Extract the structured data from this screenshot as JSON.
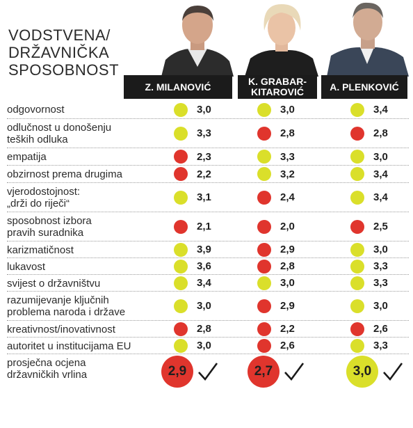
{
  "title": [
    "VODSTVENA/",
    "DRŽAVNIČKA",
    "SPOSOBNOST"
  ],
  "colors": {
    "red": "#e0352d",
    "yellow": "#dadf2a",
    "header_bg": "#1b1b1b"
  },
  "candidates": [
    {
      "name_lines": [
        "Z. MILANOVIĆ"
      ],
      "portrait": "portrait-milanovic"
    },
    {
      "name_lines": [
        "K. GRABAR-",
        "KITAROVIĆ"
      ],
      "portrait": "portrait-grabar-kitarovic"
    },
    {
      "name_lines": [
        "A. PLENKOVIĆ"
      ],
      "portrait": "portrait-plenkovic"
    }
  ],
  "rows": [
    {
      "label": [
        "odgovornost"
      ],
      "scores": [
        {
          "v": "3,0",
          "c": "yellow"
        },
        {
          "v": "3,0",
          "c": "yellow"
        },
        {
          "v": "3,4",
          "c": "yellow"
        }
      ]
    },
    {
      "label": [
        "odlučnost u donošenju",
        "teških odluka"
      ],
      "scores": [
        {
          "v": "3,3",
          "c": "yellow"
        },
        {
          "v": "2,8",
          "c": "red"
        },
        {
          "v": "2,8",
          "c": "red"
        }
      ]
    },
    {
      "label": [
        "empatija"
      ],
      "scores": [
        {
          "v": "2,3",
          "c": "red"
        },
        {
          "v": "3,3",
          "c": "yellow"
        },
        {
          "v": "3,0",
          "c": "yellow"
        }
      ]
    },
    {
      "label": [
        "obzirnost prema drugima"
      ],
      "scores": [
        {
          "v": "2,2",
          "c": "red"
        },
        {
          "v": "3,2",
          "c": "yellow"
        },
        {
          "v": "3,4",
          "c": "yellow"
        }
      ]
    },
    {
      "label": [
        "vjerodostojnost:",
        "„drži do riječi“"
      ],
      "scores": [
        {
          "v": "3,1",
          "c": "yellow"
        },
        {
          "v": "2,4",
          "c": "red"
        },
        {
          "v": "3,4",
          "c": "yellow"
        }
      ]
    },
    {
      "label": [
        "sposobnost izbora",
        "pravih suradnika"
      ],
      "scores": [
        {
          "v": "2,1",
          "c": "red"
        },
        {
          "v": "2,0",
          "c": "red"
        },
        {
          "v": "2,5",
          "c": "red"
        }
      ]
    },
    {
      "label": [
        "karizmatičnost"
      ],
      "scores": [
        {
          "v": "3,9",
          "c": "yellow"
        },
        {
          "v": "2,9",
          "c": "red"
        },
        {
          "v": "3,0",
          "c": "yellow"
        }
      ]
    },
    {
      "label": [
        "lukavost"
      ],
      "scores": [
        {
          "v": "3,6",
          "c": "yellow"
        },
        {
          "v": "2,8",
          "c": "red"
        },
        {
          "v": "3,3",
          "c": "yellow"
        }
      ]
    },
    {
      "label": [
        "svijest o državništvu"
      ],
      "scores": [
        {
          "v": "3,4",
          "c": "yellow"
        },
        {
          "v": "3,0",
          "c": "yellow"
        },
        {
          "v": "3,3",
          "c": "yellow"
        }
      ]
    },
    {
      "label": [
        "razumijevanje ključnih",
        "problema naroda i države"
      ],
      "scores": [
        {
          "v": "3,0",
          "c": "yellow"
        },
        {
          "v": "2,9",
          "c": "red"
        },
        {
          "v": "3,0",
          "c": "yellow"
        }
      ]
    },
    {
      "label": [
        "kreativnost/inovativnost"
      ],
      "scores": [
        {
          "v": "2,8",
          "c": "red"
        },
        {
          "v": "2,2",
          "c": "red"
        },
        {
          "v": "2,6",
          "c": "red"
        }
      ]
    },
    {
      "label": [
        "autoritet u institucijama EU"
      ],
      "scores": [
        {
          "v": "3,0",
          "c": "yellow"
        },
        {
          "v": "2,6",
          "c": "red"
        },
        {
          "v": "3,3",
          "c": "yellow"
        }
      ]
    }
  ],
  "final": {
    "label": [
      "prosječna ocjena",
      "državničkih vrlina"
    ],
    "scores": [
      {
        "v": "2,9",
        "c": "red"
      },
      {
        "v": "2,7",
        "c": "red"
      },
      {
        "v": "3,0",
        "c": "yellow"
      }
    ]
  }
}
